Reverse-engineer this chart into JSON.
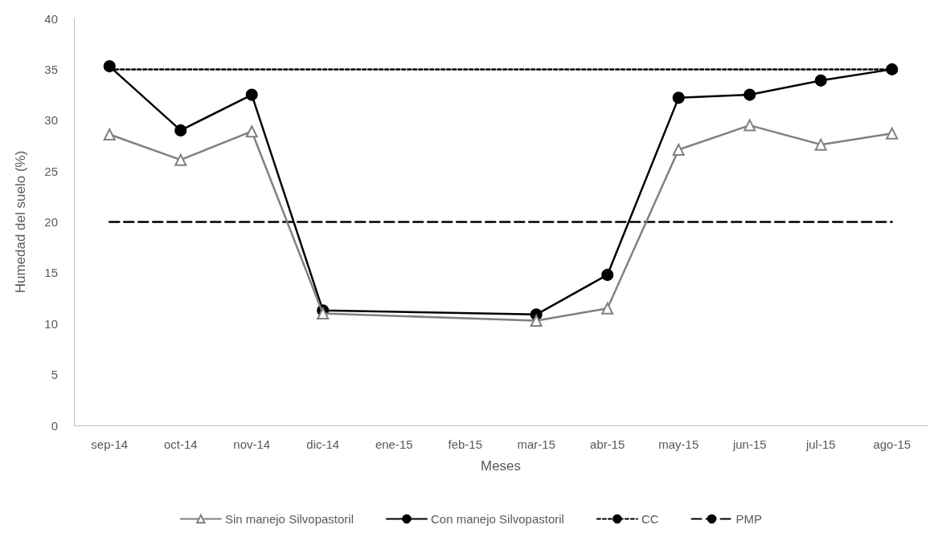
{
  "chart_data": {
    "type": "line",
    "xlabel": "Meses",
    "ylabel": "Humedad del suelo (%)",
    "categories": [
      "sep-14",
      "oct-14",
      "nov-14",
      "dic-14",
      "ene-15",
      "feb-15",
      "mar-15",
      "abr-15",
      "may-15",
      "jun-15",
      "jul-15",
      "ago-15"
    ],
    "series": [
      {
        "name": "Sin manejo Silvopastoril",
        "color": "#808080",
        "marker": "triangle",
        "line_style": "solid",
        "values": [
          28.6,
          26.1,
          28.9,
          11.0,
          null,
          null,
          10.3,
          11.5,
          27.1,
          29.5,
          27.6,
          28.7
        ]
      },
      {
        "name": "Con manejo Silvopastoril",
        "color": "#000000",
        "marker": "circle",
        "line_style": "solid",
        "values": [
          35.3,
          29.0,
          32.5,
          11.3,
          null,
          null,
          10.9,
          14.8,
          32.2,
          32.5,
          33.9,
          35.0
        ]
      },
      {
        "name": "CC",
        "color": "#000000",
        "marker": "none",
        "line_style": "dotted",
        "values": [
          35,
          35,
          35,
          35,
          35,
          35,
          35,
          35,
          35,
          35,
          35,
          35
        ]
      },
      {
        "name": "PMP",
        "color": "#000000",
        "marker": "none",
        "line_style": "dashed",
        "values": [
          20,
          20,
          20,
          20,
          20,
          20,
          20,
          20,
          20,
          20,
          20,
          20
        ]
      }
    ],
    "ylim": [
      0,
      40
    ],
    "yticks": [
      0,
      5,
      10,
      15,
      20,
      25,
      30,
      35,
      40
    ],
    "grid": false,
    "legend": "bottom"
  }
}
